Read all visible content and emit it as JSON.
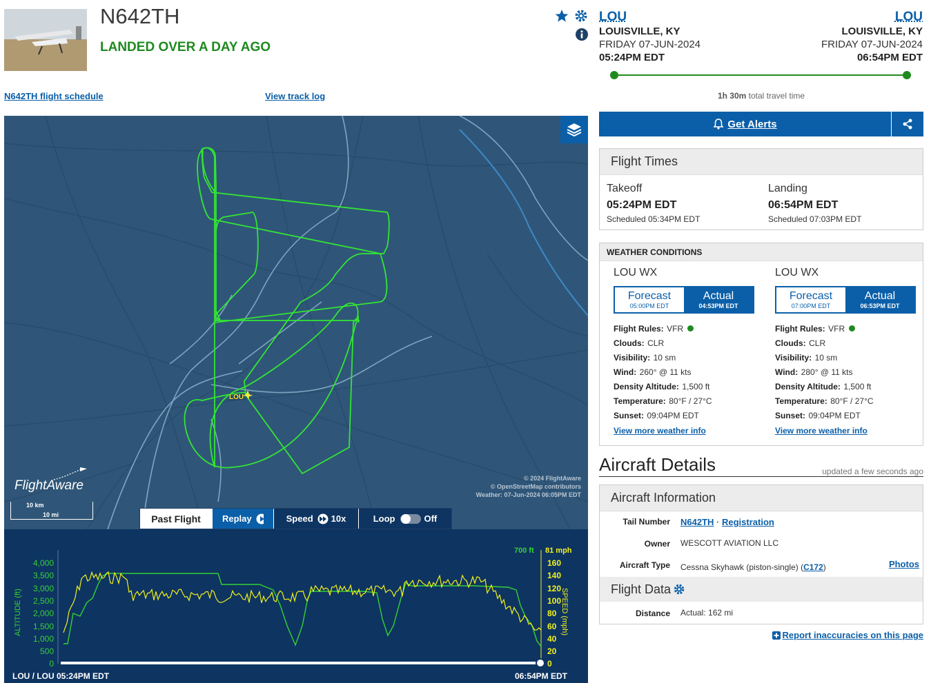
{
  "header": {
    "tail_number": "N642TH",
    "status": "LANDED OVER A DAY AGO",
    "schedule_link": "N642TH flight schedule",
    "track_log_link": "View track log"
  },
  "route": {
    "origin": {
      "code": "LOU",
      "city": "LOUISVILLE, KY",
      "date": "FRIDAY 07-JUN-2024",
      "time": "05:24PM EDT"
    },
    "destination": {
      "code": "LOU",
      "city": "LOUISVILLE, KY",
      "date": "FRIDAY 07-JUN-2024",
      "time": "06:54PM EDT"
    },
    "travel_time_bold": "1h 30m",
    "travel_time_suffix": " total travel time"
  },
  "alerts": {
    "label": "Get Alerts"
  },
  "flight_times": {
    "title": "Flight Times",
    "takeoff_label": "Takeoff",
    "takeoff_time": "05:24PM EDT",
    "takeoff_scheduled": "Scheduled 05:34PM EDT",
    "landing_label": "Landing",
    "landing_time": "06:54PM EDT",
    "landing_scheduled": "Scheduled 07:03PM EDT"
  },
  "weather": {
    "title": "WEATHER CONDITIONS",
    "columns": [
      {
        "station": "LOU WX",
        "forecast": "Forecast",
        "forecast_time": "05:00PM EDT",
        "actual": "Actual",
        "actual_time": "04:53PM EDT",
        "rules": "VFR",
        "clouds": "CLR",
        "visibility": "10 sm",
        "wind": "260° @ 11 kts",
        "density_altitude": "1,500 ft",
        "temperature": "80°F / 27°C",
        "sunset": "09:04PM EDT",
        "more": "View more weather info"
      },
      {
        "station": "LOU WX",
        "forecast": "Forecast",
        "forecast_time": "07:00PM EDT",
        "actual": "Actual",
        "actual_time": "06:53PM EDT",
        "rules": "VFR",
        "clouds": "CLR",
        "visibility": "10 sm",
        "wind": "280° @ 11 kts",
        "density_altitude": "1,500 ft",
        "temperature": "80°F / 27°C",
        "sunset": "09:04PM EDT",
        "more": "View more weather info"
      }
    ],
    "labels": {
      "rules": "Flight Rules:",
      "clouds": "Clouds:",
      "visibility": "Visibility:",
      "wind": "Wind:",
      "density_altitude": "Density Altitude:",
      "temperature": "Temperature:",
      "sunset": "Sunset:"
    }
  },
  "aircraft": {
    "title": "Aircraft Details",
    "updated": "updated a few seconds ago",
    "info_title": "Aircraft Information",
    "tail_label": "Tail Number",
    "tail_value": "N642TH",
    "registration": "Registration",
    "owner_label": "Owner",
    "owner_value": "WESCOTT AVIATION LLC",
    "type_label": "Aircraft Type",
    "type_value": "Cessna Skyhawk (piston-single) (",
    "type_code": "C172",
    "type_close": ")",
    "photos": "Photos",
    "data_title": "Flight Data",
    "distance_label": "Distance",
    "distance_value": "Actual: 162 mi",
    "report": "Report inaccuracies on this page"
  },
  "map": {
    "airport_label": "LOU",
    "brand": "FlightAware",
    "scale_km": "10 km",
    "scale_mi": "10 mi",
    "copyright1": "© 2024 FlightAware",
    "copyright2": "© OpenStreetMap contributors",
    "weather_stamp": "Weather: 07-Jun-2024 06:05PM EDT",
    "controls": {
      "past": "Past Flight",
      "replay": "Replay",
      "speed": "Speed",
      "speed_value": "10x",
      "loop": "Loop",
      "loop_value": "Off"
    }
  },
  "graph": {
    "alt_current": "700 ft",
    "speed_current": "81 mph",
    "alt_axis_label": "ALTITUDE (ft)",
    "speed_axis_label": "SPEED (mph)",
    "alt_ticks": [
      "4,000",
      "3,500",
      "3,000",
      "2,500",
      "2,000",
      "1,500",
      "1,000",
      "500",
      "0"
    ],
    "speed_ticks": [
      "160",
      "140",
      "120",
      "100",
      "80",
      "60",
      "40",
      "20",
      "0"
    ],
    "start_label": "LOU / LOU 05:24PM EDT",
    "end_label": "06:54PM EDT"
  },
  "colors": {
    "accent": "#0a5fa8",
    "status_green": "#1e8a1e",
    "track": "#3ee63e",
    "speed": "#f2f21a",
    "map_bg": "#2f5678",
    "graph_bg": "#0e3461"
  }
}
